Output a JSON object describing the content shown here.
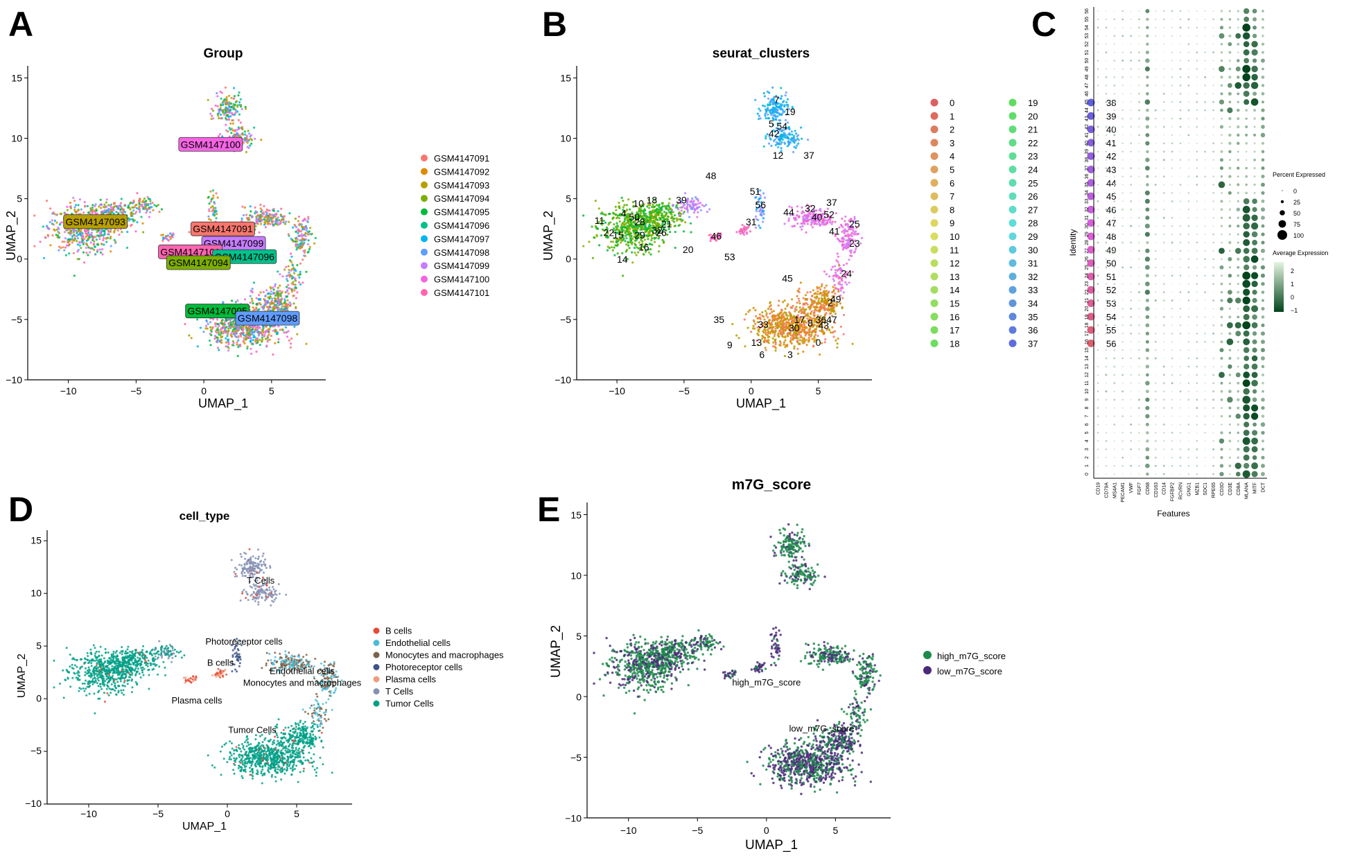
{
  "panel_letters": [
    "A",
    "B",
    "C",
    "D",
    "E"
  ],
  "chart_data": [
    {
      "panel": "A",
      "type": "scatter",
      "title": "Group",
      "xlabel": "UMAP_1",
      "ylabel": "UMAP_2",
      "xlim": [
        -13,
        9
      ],
      "ylim": [
        -10,
        16
      ],
      "xticks": [
        -10,
        -5,
        0,
        5
      ],
      "yticks": [
        -10,
        -5,
        0,
        5,
        10,
        15
      ],
      "legend_position": "right",
      "groups": [
        {
          "name": "GSM4147091",
          "color": "#F8766D"
        },
        {
          "name": "GSM4147092",
          "color": "#DE8C00"
        },
        {
          "name": "GSM4147093",
          "color": "#B79F00"
        },
        {
          "name": "GSM4147094",
          "color": "#7CAE00"
        },
        {
          "name": "GSM4147095",
          "color": "#00BA38"
        },
        {
          "name": "GSM4147096",
          "color": "#00C08B"
        },
        {
          "name": "GSM4147097",
          "color": "#00B4F0"
        },
        {
          "name": "GSM4147098",
          "color": "#619CFF"
        },
        {
          "name": "GSM4147099",
          "color": "#C77CFF"
        },
        {
          "name": "GSM4147100",
          "color": "#F564E3"
        },
        {
          "name": "GSM4147101",
          "color": "#FF64B0"
        }
      ],
      "labels": [
        {
          "text": "GSM4147100",
          "x": 0.5,
          "y": 9.5,
          "group": 9
        },
        {
          "text": "GSM4147093",
          "x": -8.0,
          "y": 3.1,
          "group": 2
        },
        {
          "text": "GSM4147091",
          "x": 1.4,
          "y": 2.5,
          "group": 0
        },
        {
          "text": "GSM4147099",
          "x": 2.2,
          "y": 1.3,
          "group": 8
        },
        {
          "text": "GSM4147101",
          "x": -1.0,
          "y": 0.6,
          "group": 10
        },
        {
          "text": "GSM4147096",
          "x": 3.0,
          "y": 0.2,
          "group": 5
        },
        {
          "text": "GSM4147094",
          "x": -0.4,
          "y": -0.3,
          "group": 3
        },
        {
          "text": "GSM4147095",
          "x": 1.0,
          "y": -4.3,
          "group": 4
        },
        {
          "text": "GSM4147098",
          "x": 4.7,
          "y": -4.9,
          "group": 7
        }
      ]
    },
    {
      "panel": "B",
      "type": "scatter",
      "title": "seurat_clusters",
      "xlabel": "UMAP_1",
      "ylabel": "UMAP_2",
      "xlim": [
        -13,
        9
      ],
      "ylim": [
        -10,
        16
      ],
      "xticks": [
        -10,
        -5,
        0,
        5
      ],
      "yticks": [
        -10,
        -5,
        0,
        5,
        10,
        15
      ],
      "legend_position": "right",
      "cluster_count": 57,
      "cluster_names": [
        "0",
        "1",
        "2",
        "3",
        "4",
        "5",
        "6",
        "7",
        "8",
        "9",
        "10",
        "11",
        "12",
        "13",
        "14",
        "15",
        "16",
        "17",
        "18",
        "19",
        "20",
        "21",
        "22",
        "23",
        "24",
        "25",
        "26",
        "27",
        "28",
        "29",
        "30",
        "31",
        "32",
        "33",
        "34",
        "35",
        "36",
        "37",
        "38",
        "39",
        "40",
        "41",
        "42",
        "43",
        "44",
        "45",
        "46",
        "47",
        "48",
        "49",
        "50",
        "51",
        "52",
        "53",
        "54",
        "55",
        "56"
      ],
      "labels": [
        {
          "text": "7",
          "x": 1.9,
          "y": 13.2
        },
        {
          "text": "19",
          "x": 2.9,
          "y": 12.2
        },
        {
          "text": "5",
          "x": 1.5,
          "y": 11.2
        },
        {
          "text": "54",
          "x": 2.3,
          "y": 11.0
        },
        {
          "text": "42",
          "x": 1.7,
          "y": 10.4
        },
        {
          "text": "12",
          "x": 2.0,
          "y": 8.6
        },
        {
          "text": "37",
          "x": 4.3,
          "y": 8.6
        },
        {
          "text": "48",
          "x": -3.0,
          "y": 6.9
        },
        {
          "text": "51",
          "x": 0.3,
          "y": 5.6
        },
        {
          "text": "56",
          "x": 0.7,
          "y": 4.5
        },
        {
          "text": "18",
          "x": -7.4,
          "y": 4.9
        },
        {
          "text": "10",
          "x": -8.4,
          "y": 4.6
        },
        {
          "text": "39",
          "x": -5.2,
          "y": 4.9
        },
        {
          "text": "4",
          "x": -9.5,
          "y": 3.8
        },
        {
          "text": "50",
          "x": -8.7,
          "y": 3.5
        },
        {
          "text": "28",
          "x": -8.3,
          "y": 3.1
        },
        {
          "text": "11",
          "x": -11.3,
          "y": 3.2
        },
        {
          "text": "21",
          "x": -6.3,
          "y": 2.9
        },
        {
          "text": "32",
          "x": -7.0,
          "y": 2.4
        },
        {
          "text": "26",
          "x": -6.7,
          "y": 2.2
        },
        {
          "text": "22",
          "x": -10.6,
          "y": 2.2
        },
        {
          "text": "15",
          "x": -9.9,
          "y": 2.0
        },
        {
          "text": "29",
          "x": -8.3,
          "y": 2.0
        },
        {
          "text": "16",
          "x": -8.0,
          "y": 1.0
        },
        {
          "text": "20",
          "x": -4.7,
          "y": 0.8
        },
        {
          "text": "14",
          "x": -9.6,
          "y": 0.0
        },
        {
          "text": "31",
          "x": 0.0,
          "y": 3.1
        },
        {
          "text": "46",
          "x": -2.6,
          "y": 1.9
        },
        {
          "text": "53",
          "x": -1.6,
          "y": 0.2
        },
        {
          "text": "44",
          "x": 2.8,
          "y": 3.9
        },
        {
          "text": "32",
          "x": 4.4,
          "y": 4.2
        },
        {
          "text": "40",
          "x": 4.9,
          "y": 3.5
        },
        {
          "text": "52",
          "x": 5.8,
          "y": 3.7
        },
        {
          "text": "37",
          "x": 6.0,
          "y": 4.7
        },
        {
          "text": "25",
          "x": 7.7,
          "y": 2.9
        },
        {
          "text": "41",
          "x": 6.2,
          "y": 2.3
        },
        {
          "text": "23",
          "x": 7.7,
          "y": 1.3
        },
        {
          "text": "24",
          "x": 7.1,
          "y": -1.2
        },
        {
          "text": "45",
          "x": 2.7,
          "y": -1.6
        },
        {
          "text": "49",
          "x": 6.3,
          "y": -3.3
        },
        {
          "text": "2",
          "x": 5.9,
          "y": -3.6
        },
        {
          "text": "36",
          "x": 5.2,
          "y": -5.0
        },
        {
          "text": "47",
          "x": 6.0,
          "y": -5.0
        },
        {
          "text": "43",
          "x": 5.4,
          "y": -5.5
        },
        {
          "text": "17",
          "x": 3.6,
          "y": -5.0
        },
        {
          "text": "8",
          "x": 4.4,
          "y": -5.3
        },
        {
          "text": "30",
          "x": 3.2,
          "y": -5.7
        },
        {
          "text": "33",
          "x": 0.9,
          "y": -5.4
        },
        {
          "text": "35",
          "x": -2.4,
          "y": -5.0
        },
        {
          "text": "13",
          "x": 0.4,
          "y": -6.9
        },
        {
          "text": "9",
          "x": -1.6,
          "y": -7.1
        },
        {
          "text": "6",
          "x": 0.8,
          "y": -7.9
        },
        {
          "text": "3",
          "x": 2.9,
          "y": -7.9
        },
        {
          "text": "0",
          "x": 5.0,
          "y": -6.9
        }
      ]
    },
    {
      "panel": "C",
      "type": "heatmap",
      "subtype": "dotplot",
      "xlabel": "Features",
      "ylabel": "Identity",
      "features": [
        "CD19",
        "CD79A",
        "MS4A1",
        "PECAM1",
        "VWF",
        "FGF7",
        "CD68",
        "CD163",
        "CD14",
        "FGFBP2",
        "RCVRN",
        "GNG1",
        "MZB1",
        "SDC1",
        "RPE65",
        "CD3D",
        "CD3E",
        "CD8A",
        "MLANA",
        "MITF",
        "DCT"
      ],
      "identities": [
        "0",
        "1",
        "2",
        "3",
        "4",
        "5",
        "6",
        "7",
        "8",
        "9",
        "10",
        "11",
        "12",
        "13",
        "14",
        "15",
        "16",
        "17",
        "18",
        "19",
        "20",
        "21",
        "22",
        "23",
        "24",
        "25",
        "26",
        "27",
        "28",
        "29",
        "30",
        "31",
        "32",
        "33",
        "34",
        "35",
        "36",
        "37",
        "38",
        "39",
        "40",
        "41",
        "42",
        "43",
        "44",
        "45",
        "46",
        "47",
        "48",
        "49",
        "50",
        "51",
        "52",
        "53",
        "54",
        "55",
        "56"
      ],
      "size_legend_title": "Percent Expressed",
      "size_legend_values": [
        "0",
        "25",
        "50",
        "75",
        "100"
      ],
      "color_legend_title": "Average Expression",
      "color_legend_values": [
        "2",
        "1",
        "0",
        "−1"
      ],
      "color_high": "#E5F5E0",
      "color_low": "#00441B"
    },
    {
      "panel": "D",
      "type": "scatter",
      "title": "cell_type",
      "xlabel": "UMAP_1",
      "ylabel": "UMAP_2",
      "xlim": [
        -13,
        9
      ],
      "ylim": [
        -10,
        16
      ],
      "xticks": [
        -10,
        -5,
        0,
        5
      ],
      "yticks": [
        -10,
        -5,
        0,
        5,
        10,
        15
      ],
      "legend_position": "right",
      "groups": [
        {
          "name": "B cells",
          "color": "#E64B35"
        },
        {
          "name": "Endothelial cells",
          "color": "#4DBBD5"
        },
        {
          "name": "Monocytes and macrophages",
          "color": "#7E6148"
        },
        {
          "name": "Photoreceptor cells",
          "color": "#3C5488"
        },
        {
          "name": "Plasma cells",
          "color": "#F39B7F"
        },
        {
          "name": "T Cells",
          "color": "#8491B4"
        },
        {
          "name": "Tumor Cells",
          "color": "#00A087"
        }
      ],
      "labels": [
        {
          "text": "T Cells",
          "x": 2.4,
          "y": 11.2
        },
        {
          "text": "Photoreceptor cells",
          "x": 1.2,
          "y": 5.4
        },
        {
          "text": "B cells",
          "x": -0.5,
          "y": 3.4
        },
        {
          "text": "Endothelial cells",
          "x": 5.4,
          "y": 2.6
        },
        {
          "text": "Monocytes and macrophages",
          "x": 5.4,
          "y": 1.5
        },
        {
          "text": "Plasma cells",
          "x": -2.2,
          "y": -0.2
        },
        {
          "text": "Tumor Cells",
          "x": 1.8,
          "y": -3.0
        }
      ]
    },
    {
      "panel": "E",
      "type": "scatter",
      "title": "m7G_score",
      "xlabel": "UMAP_1",
      "ylabel": "UMAP_2",
      "xlim": [
        -13,
        9
      ],
      "ylim": [
        -10,
        16
      ],
      "xticks": [
        -10,
        -5,
        0,
        5
      ],
      "yticks": [
        -10,
        -5,
        0,
        5,
        10,
        15
      ],
      "legend_position": "right",
      "groups": [
        {
          "name": "high_m7G_score",
          "color": "#1E8A4C"
        },
        {
          "name": "low_m7G_score",
          "color": "#4B2A7A"
        }
      ],
      "labels": [
        {
          "text": "high_m7G_score",
          "x": 0.0,
          "y": 1.2
        },
        {
          "text": "low_m7G_score",
          "x": 4.0,
          "y": -2.6
        }
      ]
    }
  ]
}
